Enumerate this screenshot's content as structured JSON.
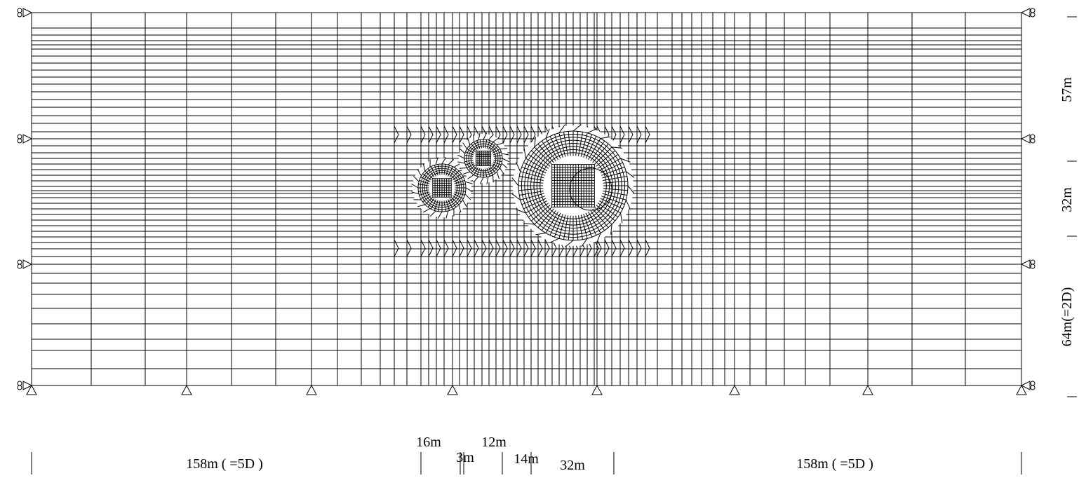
{
  "dimensions": {
    "bottom": [
      "158m ( =5D )",
      "16m",
      "12m",
      "3m",
      "14m",
      "32m",
      "158m ( =5D )"
    ],
    "right": [
      "57m",
      "32m",
      "64m(=2D)"
    ]
  }
}
